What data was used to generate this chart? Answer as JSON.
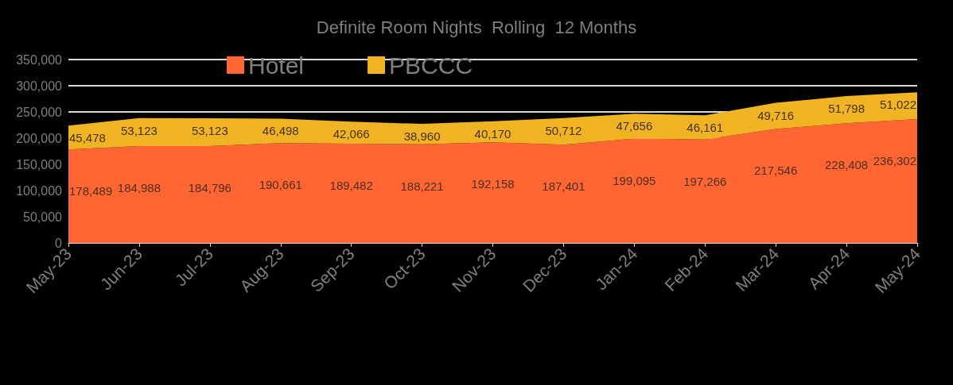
{
  "chart_data": {
    "type": "area",
    "title": "Definite Room Nights  Rolling  12 Months",
    "categories": [
      "May-23",
      "Jun-23",
      "Jul-23",
      "Aug-23",
      "Sep-23",
      "Oct-23",
      "Nov-23",
      "Dec-23",
      "Jan-24",
      "Feb-24",
      "Mar-24",
      "Apr-24",
      "May-24"
    ],
    "series": [
      {
        "name": "Hotel",
        "color": "#ff6633",
        "values": [
          178489,
          184988,
          184796,
          190661,
          189482,
          188221,
          192158,
          187401,
          199095,
          197266,
          217546,
          228408,
          236302
        ],
        "value_labels": [
          "178,489",
          "184,988",
          "184,796",
          "190,661",
          "189,482",
          "188,221",
          "192,158",
          "187,401",
          "199,095",
          "197,266",
          "217,546",
          "228,408",
          "236,302"
        ]
      },
      {
        "name": "PBCCC",
        "color": "#f0b323",
        "values": [
          45478,
          53123,
          53123,
          46498,
          42066,
          38960,
          40170,
          50712,
          47656,
          46161,
          49716,
          51798,
          51022
        ],
        "value_labels": [
          "45,478",
          "53,123",
          "53,123",
          "46,498",
          "42,066",
          "38,960",
          "40,170",
          "50,712",
          "47,656",
          "46,161",
          "49,716",
          "51,798",
          "51,022"
        ]
      }
    ],
    "stacked": true,
    "ylim": [
      0,
      350000
    ],
    "yticks": [
      0,
      {
        "value": 50000,
        "label": "50,000"
      },
      {
        "value": 100000,
        "label": "100,000"
      },
      {
        "value": 150000,
        "label": "150,000"
      },
      {
        "value": 200000,
        "label": "200,000"
      },
      {
        "value": 250000,
        "label": "250,000"
      },
      {
        "value": 300000,
        "label": "300,000"
      },
      {
        "value": 350000,
        "label": "350,000"
      }
    ],
    "grid": "y",
    "legend": "top left"
  }
}
